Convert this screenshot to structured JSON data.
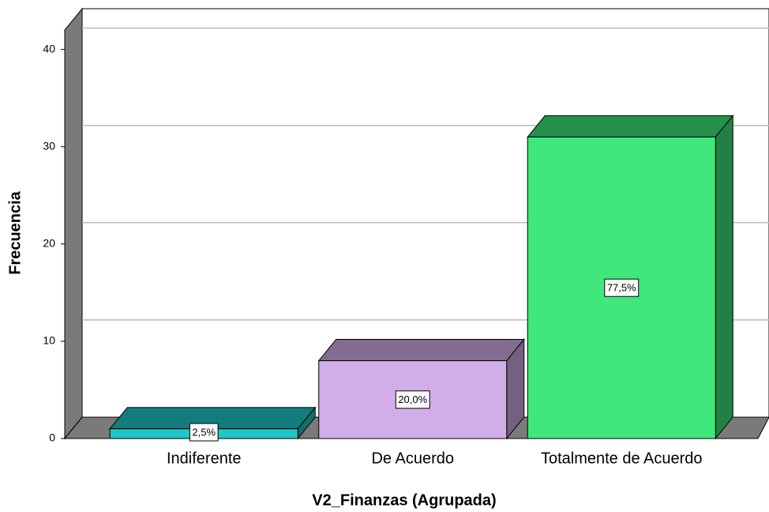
{
  "chart_data": {
    "type": "bar3d",
    "x_label": "V2_Finanzas (Agrupada)",
    "y_label": "Frecuencia",
    "categories": [
      "Indiferente",
      "De Acuerdo",
      "Totalmente de Acuerdo"
    ],
    "values": [
      1,
      8,
      31
    ],
    "value_labels": [
      "2,5%",
      "20,0%",
      "77,5%"
    ],
    "colors": [
      "#1ec8c8",
      "#d2aee8",
      "#40e87c"
    ],
    "ylim": [
      0,
      42
    ],
    "yticks": [
      0,
      10,
      20,
      30,
      40
    ],
    "grid": true
  }
}
